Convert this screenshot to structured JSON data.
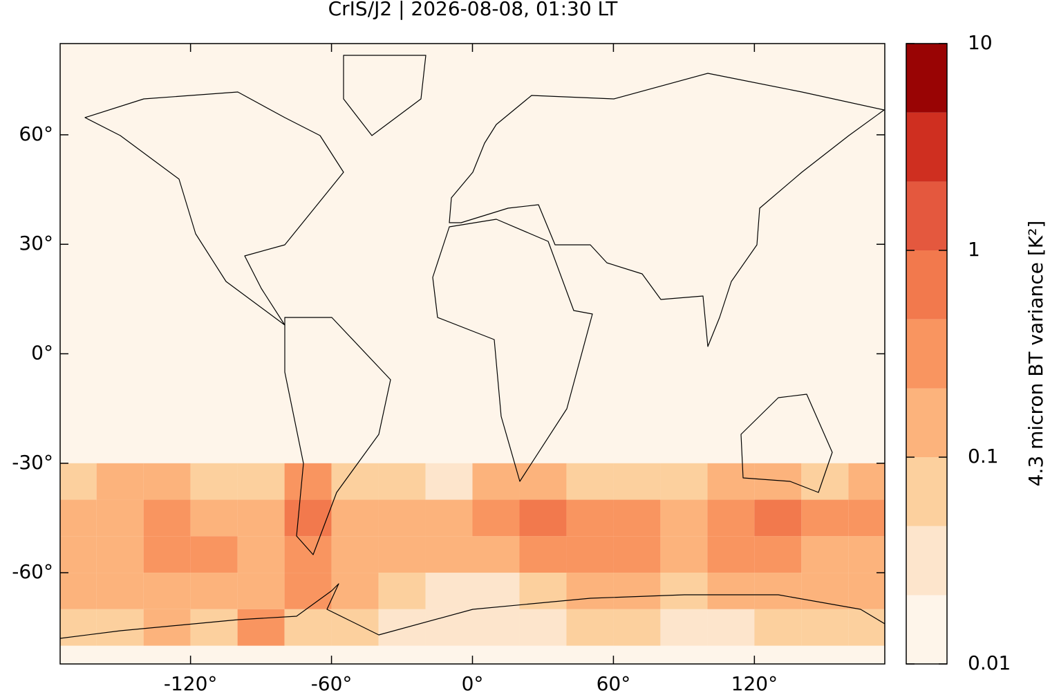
{
  "chart_data": {
    "type": "gridmap",
    "title": "CrIS/J2 | 2026-08-08, 01:30 LT",
    "xlim": [
      -175.5,
      175.5
    ],
    "ylim": [
      -85,
      85
    ],
    "xticks": [
      {
        "value": -120,
        "label": "-120°"
      },
      {
        "value": -60,
        "label": "-60°"
      },
      {
        "value": 0,
        "label": "0°"
      },
      {
        "value": 60,
        "label": "60°"
      },
      {
        "value": 120,
        "label": "120°"
      }
    ],
    "yticks": [
      {
        "value": 60,
        "label": "60°"
      },
      {
        "value": 30,
        "label": "30°"
      },
      {
        "value": 0,
        "label": "0°"
      },
      {
        "value": -30,
        "label": "-30°"
      },
      {
        "value": -60,
        "label": "-60°"
      }
    ],
    "lon_edges": [
      -180,
      -160,
      -140,
      -120,
      -100,
      -80,
      -60,
      -40,
      -20,
      0,
      20,
      40,
      60,
      80,
      100,
      120,
      140,
      160,
      180
    ],
    "lat_edges": [
      -30,
      -40,
      -50,
      -60,
      -70,
      -80
    ],
    "values": [
      [
        0.08,
        0.1,
        0.1,
        0.08,
        0.08,
        0.3,
        0.08,
        0.05,
        0.03,
        0.1,
        0.15,
        0.08,
        0.08,
        0.05,
        0.1,
        0.1,
        0.05,
        0.1
      ],
      [
        0.15,
        0.2,
        0.3,
        0.2,
        0.15,
        0.5,
        0.2,
        0.15,
        0.1,
        0.3,
        0.6,
        0.4,
        0.3,
        0.2,
        0.3,
        0.6,
        0.3,
        0.4
      ],
      [
        0.2,
        0.2,
        0.4,
        0.3,
        0.2,
        0.3,
        0.15,
        0.1,
        0.1,
        0.2,
        0.3,
        0.4,
        0.3,
        0.2,
        0.3,
        0.3,
        0.2,
        0.2
      ],
      [
        0.15,
        0.1,
        0.2,
        0.1,
        0.1,
        0.3,
        0.1,
        0.05,
        0.03,
        0.03,
        0.08,
        0.1,
        0.1,
        0.08,
        0.1,
        0.1,
        0.1,
        0.15
      ],
      [
        0.05,
        0.05,
        0.2,
        0.05,
        0.3,
        0.05,
        0.05,
        0.03,
        0.03,
        0.03,
        0.03,
        0.05,
        0.05,
        0.03,
        0.03,
        0.05,
        0.05,
        0.05
      ]
    ],
    "colorbar": {
      "label": "4.3 micron BT variance [K²]",
      "log": true,
      "clim": [
        0.01,
        10
      ],
      "ticks": [
        0.01,
        0.1,
        1,
        10
      ],
      "levels": [
        0.01,
        0.0215,
        0.0464,
        0.1,
        0.215,
        0.464,
        1,
        2.15,
        4.64,
        10
      ],
      "colors": [
        "#fef5ea",
        "#fde5cc",
        "#fcd09e",
        "#fcb37c",
        "#f99560",
        "#f2794d",
        "#e4583e",
        "#cf2f20",
        "#990404"
      ]
    }
  }
}
